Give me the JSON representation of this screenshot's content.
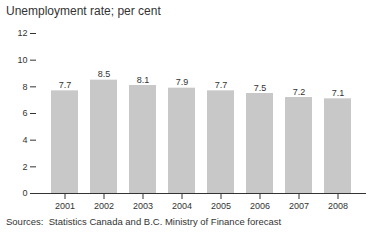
{
  "chart_data": {
    "type": "bar",
    "title": "Unemployment rate; per cent",
    "caption": "Sources:  Statistics Canada and B.C. Ministry of Finance forecast",
    "categories": [
      "2001",
      "2002",
      "2003",
      "2004",
      "2005",
      "2006",
      "2007",
      "2008"
    ],
    "values": [
      7.7,
      8.5,
      8.1,
      7.9,
      7.7,
      7.5,
      7.2,
      7.1
    ],
    "color": "#c8c8c8",
    "ylim": [
      0,
      12
    ],
    "yticks": [
      0,
      2,
      4,
      6,
      8,
      10,
      12
    ],
    "grid": false,
    "data_labels": true
  }
}
